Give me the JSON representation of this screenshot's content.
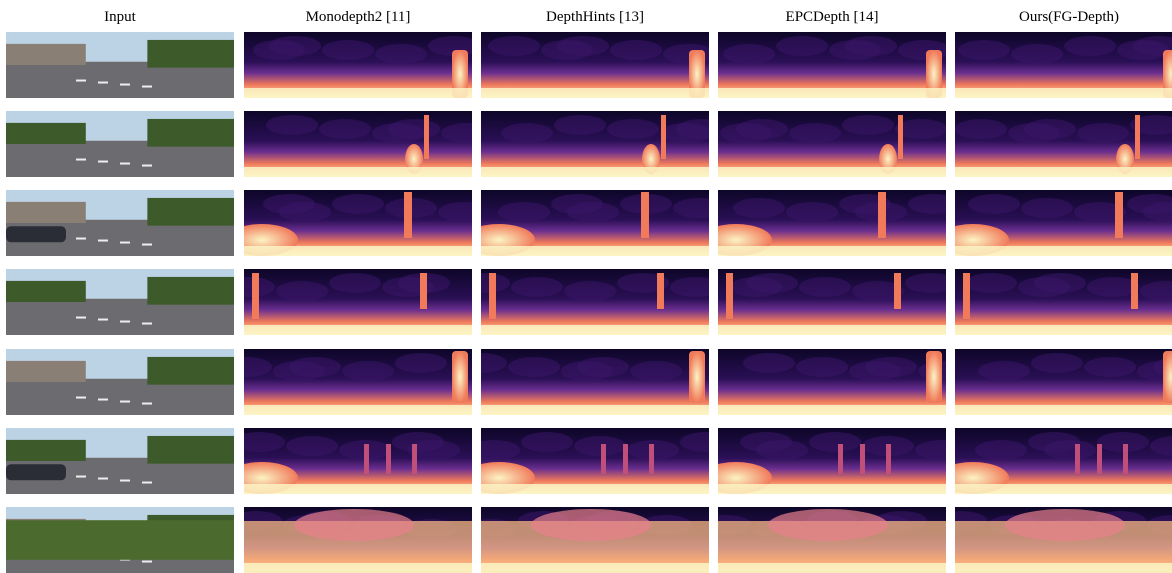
{
  "figure": {
    "columns": [
      {
        "key": "input",
        "label": "Input"
      },
      {
        "key": "monodepth2",
        "label": "Monodepth2 [11]"
      },
      {
        "key": "depthhints",
        "label": "DepthHints [13]"
      },
      {
        "key": "epcdepth",
        "label": "EPCDepth [14]"
      },
      {
        "key": "ours",
        "label": "Ours(FG-Depth)"
      }
    ],
    "rows": [
      {
        "scene": "street-with-wall-and-pole"
      },
      {
        "scene": "street-with-cyclist"
      },
      {
        "scene": "parked-cars-and-trees"
      },
      {
        "scene": "intersection-with-road-marking"
      },
      {
        "scene": "road-with-railway-and-pole"
      },
      {
        "scene": "parking-lot-with-trees"
      },
      {
        "scene": "hedge-and-fence"
      }
    ]
  },
  "colors": {
    "depth_far": "#0d0628",
    "depth_mid": "#6b2f8f",
    "depth_near": "#f07a5a",
    "depth_closest": "#fcf4c4"
  }
}
